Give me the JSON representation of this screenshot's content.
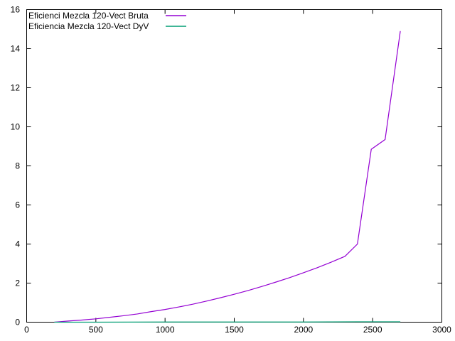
{
  "chart_data": {
    "type": "line",
    "title": "",
    "xlabel": "",
    "ylabel": "",
    "xlim": [
      0,
      3000
    ],
    "ylim": [
      0,
      16
    ],
    "xticks": [
      0,
      500,
      1000,
      1500,
      2000,
      2500,
      3000
    ],
    "yticks": [
      0,
      2,
      4,
      6,
      8,
      10,
      12,
      14,
      16
    ],
    "grid": false,
    "legend_position": "top-left",
    "series": [
      {
        "name": "Eficienci Mezcla 120-Vect Bruta",
        "color": "#9400d3",
        "x": [
          200,
          300,
          400,
          500,
          600,
          700,
          800,
          900,
          1000,
          1100,
          1200,
          1300,
          1400,
          1500,
          1600,
          1700,
          1800,
          1900,
          2000,
          2100,
          2200,
          2300,
          2390,
          2490,
          2590,
          2700
        ],
        "y": [
          0.0,
          0.06,
          0.11,
          0.17,
          0.25,
          0.33,
          0.42,
          0.54,
          0.65,
          0.78,
          0.92,
          1.08,
          1.25,
          1.43,
          1.62,
          1.83,
          2.05,
          2.28,
          2.53,
          2.79,
          3.07,
          3.37,
          4.0,
          8.85,
          9.35,
          14.9
        ]
      },
      {
        "name": "Eficiencia Mezcla 120-Vect DyV",
        "color": "#009e73",
        "x": [
          200,
          500,
          1000,
          1500,
          2000,
          2390,
          2490,
          2590,
          2700
        ],
        "y": [
          0.0,
          0.0,
          0.01,
          0.01,
          0.01,
          0.02,
          0.02,
          0.02,
          0.02
        ]
      }
    ]
  }
}
